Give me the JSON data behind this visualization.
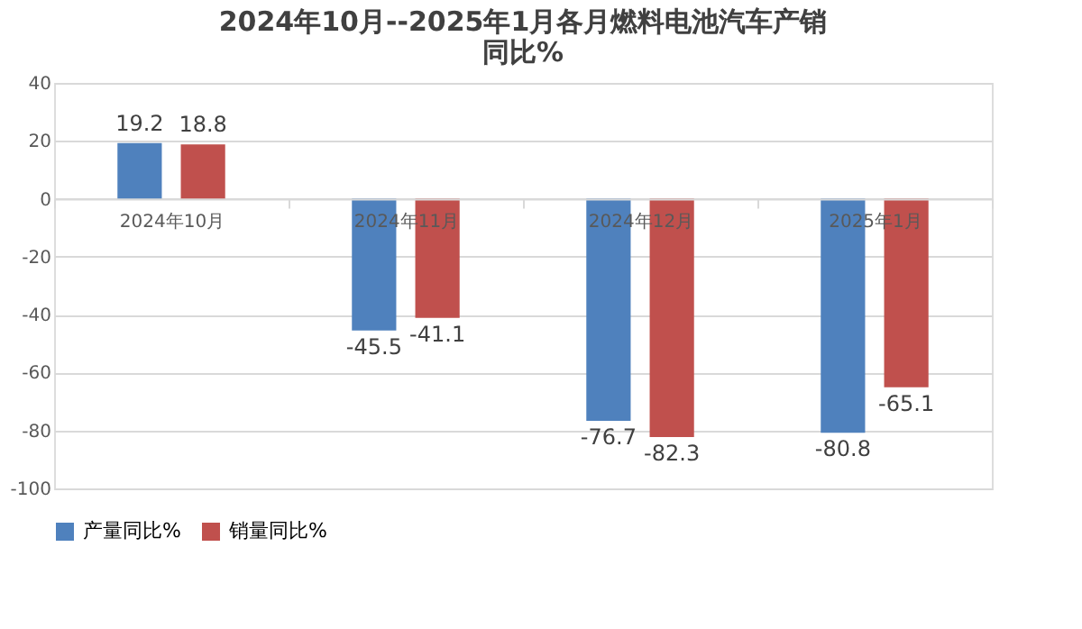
{
  "chart_data": {
    "type": "bar",
    "title": "2024年10月--2025年1月各月燃料电池汽车产销同比%",
    "categories": [
      "2024年10月",
      "2024年11月",
      "2024年12月",
      "2025年1月"
    ],
    "series": [
      {
        "name": "产量同比%",
        "color": "#4f81bd",
        "values": [
          19.2,
          -45.5,
          -76.7,
          -80.8
        ]
      },
      {
        "name": "销量同比%",
        "color": "#c0504d",
        "values": [
          18.8,
          -41.1,
          -82.3,
          -65.1
        ]
      }
    ],
    "ylim": [
      -100,
      40
    ],
    "yticks": [
      -100,
      -80,
      -60,
      -40,
      -20,
      0,
      20,
      40
    ],
    "grid": "y",
    "legend": "bottom",
    "data_labels": true
  }
}
